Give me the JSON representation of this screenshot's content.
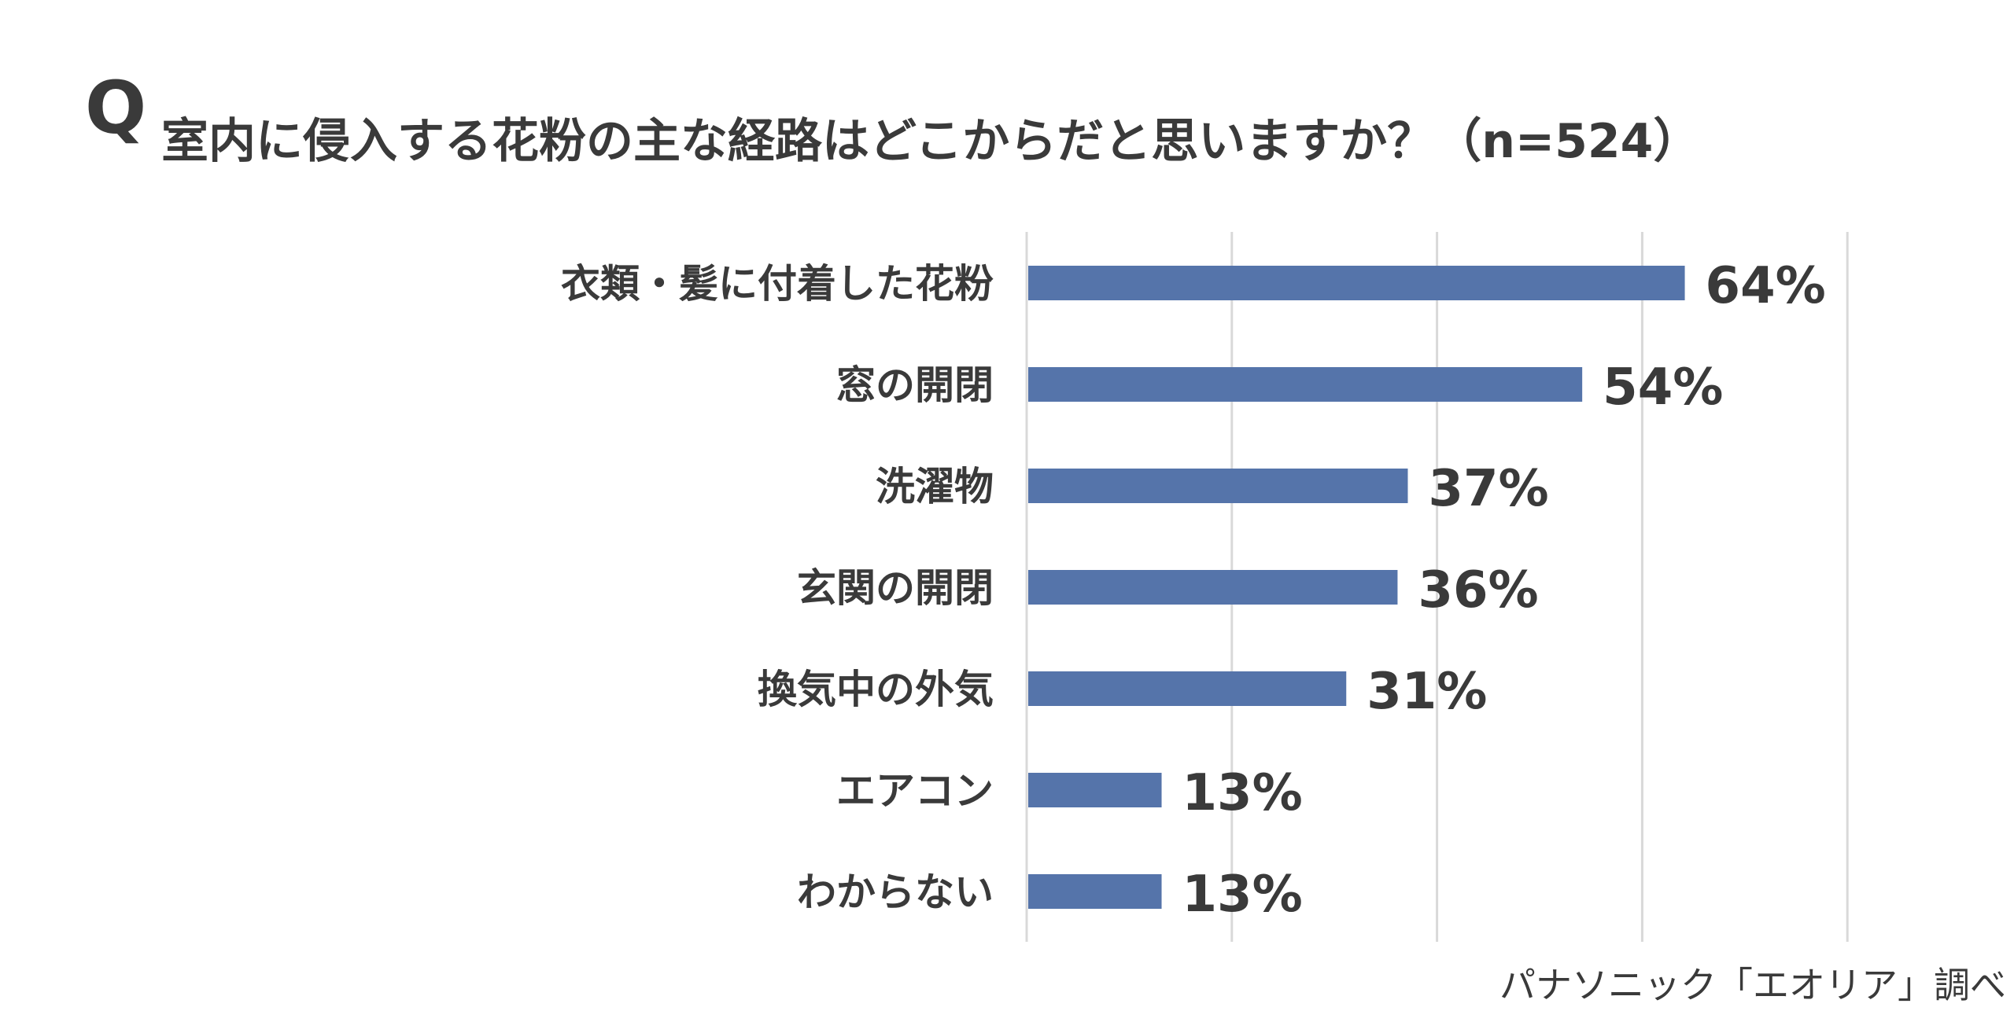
{
  "question": {
    "mark": "Q",
    "text": "室内に侵入する花粉の主な経路はどこからだと思いますか？（n=524）"
  },
  "source": "パナソニック「エオリア」調べ",
  "colors": {
    "bar": "#5574aa",
    "grid": "#d9d9d9",
    "text": "#3a3a3a"
  },
  "chart_data": {
    "type": "bar",
    "orientation": "horizontal",
    "categories": [
      "衣類・髪に付着した花粉",
      "窓の開閉",
      "洗濯物",
      "玄関の開閉",
      "換気中の外気",
      "エアコン",
      "わからない"
    ],
    "values": [
      64,
      54,
      37,
      36,
      31,
      13,
      13
    ],
    "value_labels": [
      "64%",
      "54%",
      "37%",
      "36%",
      "31%",
      "13%",
      "13%"
    ],
    "unit": "%",
    "xlim": [
      0,
      80
    ],
    "grid": true,
    "legend": "none"
  }
}
